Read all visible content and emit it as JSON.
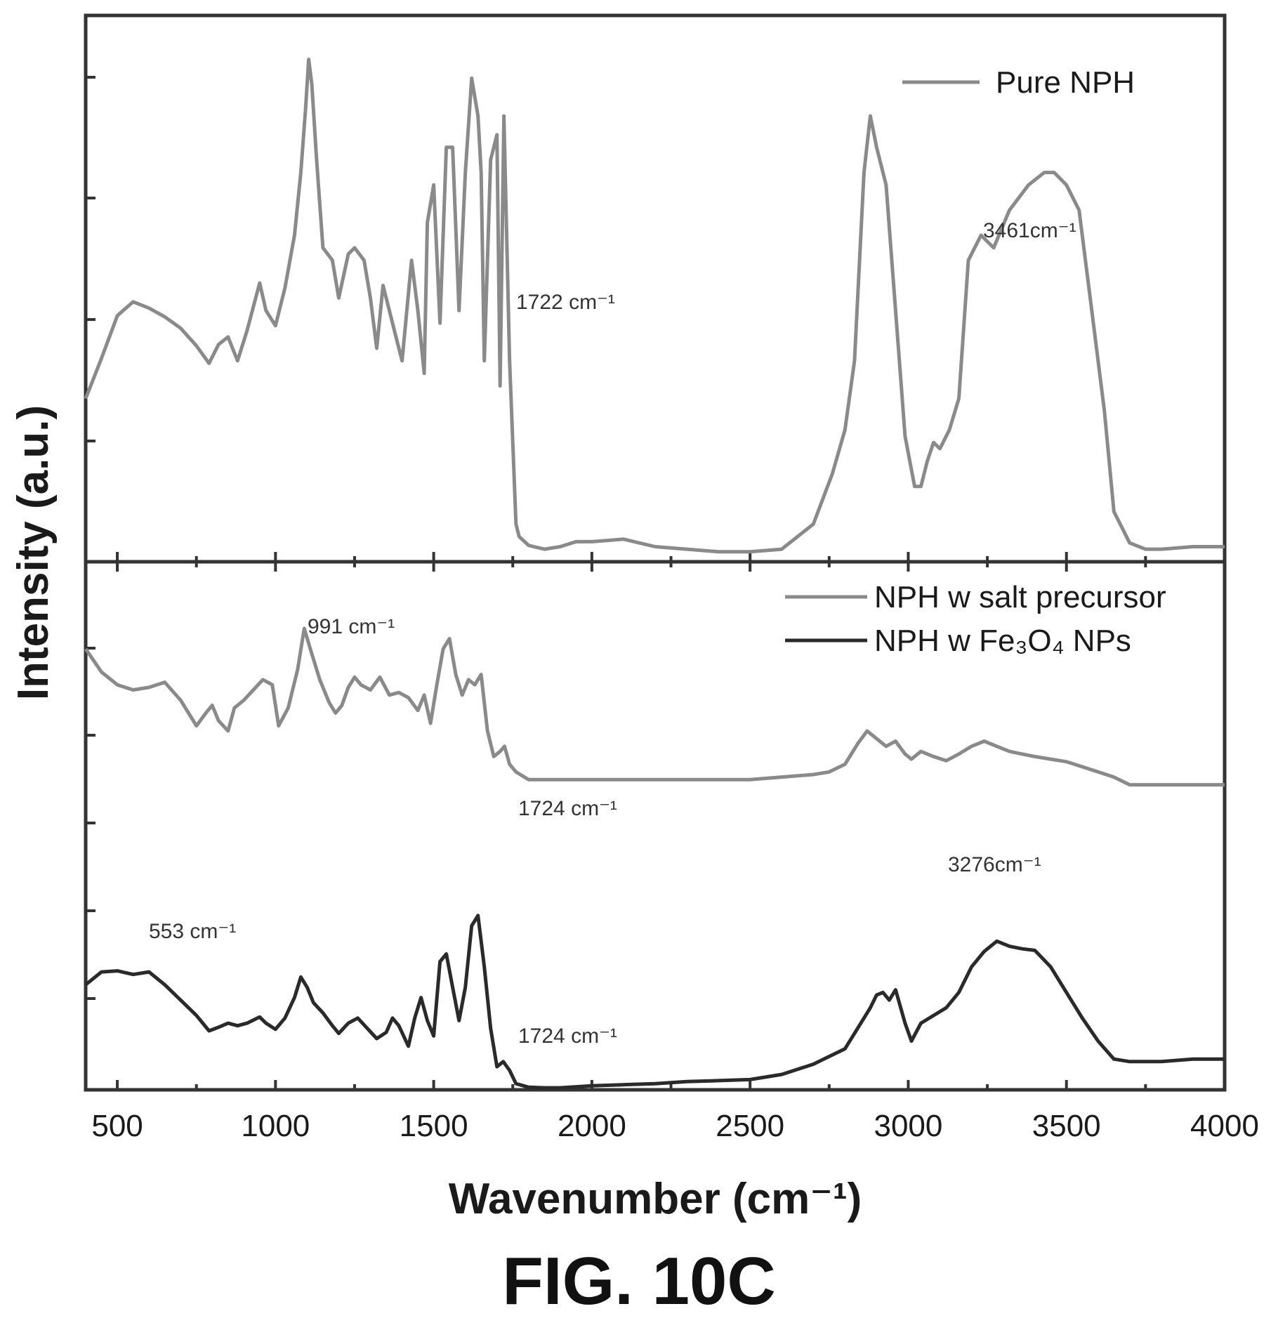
{
  "chart_data": {
    "type": "line",
    "xlabel": "Wavenumber (cm⁻¹)",
    "ylabel": "Intensity (a.u.)",
    "xlim": [
      400,
      4000
    ],
    "x_ticks": [
      "500",
      "1000",
      "1500",
      "2000",
      "2500",
      "3000",
      "3500",
      "4000"
    ],
    "y_tick_labels_shown": false,
    "grid": false,
    "caption": "FIG. 10C",
    "panels": [
      {
        "position": "top",
        "legend_location": "top-right",
        "series": [
          {
            "name": "Pure NPH",
            "color": "#8a8a8a",
            "x": [
              400,
              450,
              500,
              550,
              600,
              650,
              700,
              750,
              790,
              820,
              850,
              880,
              910,
              950,
              970,
              1000,
              1030,
              1060,
              1080,
              1095,
              1105,
              1115,
              1130,
              1150,
              1180,
              1200,
              1230,
              1250,
              1280,
              1300,
              1320,
              1340,
              1360,
              1380,
              1400,
              1430,
              1450,
              1470,
              1480,
              1500,
              1520,
              1540,
              1560,
              1580,
              1600,
              1620,
              1640,
              1650,
              1660,
              1680,
              1700,
              1710,
              1722,
              1740,
              1760,
              1770,
              1800,
              1850,
              1900,
              1950,
              2000,
              2050,
              2100,
              2150,
              2200,
              2300,
              2400,
              2500,
              2600,
              2700,
              2760,
              2800,
              2830,
              2860,
              2880,
              2900,
              2930,
              2960,
              2990,
              3020,
              3040,
              3060,
              3080,
              3100,
              3130,
              3160,
              3190,
              3230,
              3270,
              3320,
              3380,
              3430,
              3461,
              3500,
              3540,
              3580,
              3620,
              3650,
              3700,
              3750,
              3800,
              3900,
              4000
            ],
            "y": [
              1.3,
              1.62,
              1.96,
              2.07,
              2.02,
              1.95,
              1.86,
              1.72,
              1.58,
              1.73,
              1.79,
              1.6,
              1.84,
              2.22,
              2.0,
              1.88,
              2.18,
              2.6,
              3.1,
              3.6,
              4.0,
              3.8,
              3.2,
              2.5,
              2.4,
              2.1,
              2.45,
              2.5,
              2.4,
              2.1,
              1.7,
              2.2,
              2.0,
              1.8,
              1.6,
              2.4,
              2.0,
              1.5,
              2.7,
              3.0,
              1.9,
              3.3,
              3.3,
              2.0,
              3.1,
              3.85,
              3.55,
              3.1,
              1.6,
              3.2,
              3.4,
              1.4,
              3.55,
              1.6,
              0.3,
              0.2,
              0.13,
              0.1,
              0.12,
              0.16,
              0.16,
              0.17,
              0.18,
              0.15,
              0.12,
              0.1,
              0.08,
              0.08,
              0.1,
              0.3,
              0.7,
              1.05,
              1.6,
              3.1,
              3.55,
              3.3,
              3.0,
              2.0,
              1.0,
              0.6,
              0.6,
              0.8,
              0.95,
              0.9,
              1.05,
              1.3,
              2.4,
              2.6,
              2.5,
              2.8,
              3.0,
              3.1,
              3.1,
              3.0,
              2.8,
              2.0,
              1.2,
              0.4,
              0.15,
              0.1,
              0.1,
              0.12,
              0.12
            ]
          }
        ],
        "annotations": [
          "1722 cm⁻¹",
          "3461cm⁻¹"
        ]
      },
      {
        "position": "bottom",
        "legend_location": "top-right",
        "series": [
          {
            "name": "NPH w salt precursor",
            "color": "#8a8a8a",
            "x": [
              400,
              450,
              500,
              550,
              600,
              650,
              700,
              750,
              780,
              800,
              820,
              850,
              870,
              900,
              930,
              960,
              990,
              1010,
              1040,
              1070,
              1091,
              1110,
              1140,
              1170,
              1190,
              1210,
              1230,
              1250,
              1270,
              1300,
              1330,
              1360,
              1390,
              1420,
              1450,
              1470,
              1490,
              1510,
              1530,
              1550,
              1570,
              1590,
              1610,
              1630,
              1650,
              1670,
              1690,
              1710,
              1724,
              1740,
              1760,
              1800,
              1850,
              1900,
              2000,
              2100,
              2200,
              2300,
              2400,
              2500,
              2600,
              2700,
              2750,
              2800,
              2840,
              2870,
              2900,
              2930,
              2960,
              2990,
              3010,
              3040,
              3080,
              3120,
              3160,
              3200,
              3240,
              3280,
              3320,
              3360,
              3400,
              3450,
              3500,
              3550,
              3600,
              3650,
              3700,
              3800,
              3900,
              4000
            ],
            "y": [
              8.6,
              8.15,
              7.9,
              7.8,
              7.85,
              7.95,
              7.6,
              7.1,
              7.35,
              7.5,
              7.2,
              7.0,
              7.45,
              7.6,
              7.8,
              8.0,
              7.9,
              7.1,
              7.45,
              8.2,
              9.0,
              8.6,
              8.0,
              7.55,
              7.35,
              7.5,
              7.85,
              8.05,
              7.9,
              7.8,
              8.05,
              7.7,
              7.75,
              7.65,
              7.4,
              7.7,
              7.15,
              7.9,
              8.6,
              8.8,
              8.1,
              7.7,
              8.0,
              7.9,
              8.1,
              7.0,
              6.5,
              6.6,
              6.7,
              6.35,
              6.2,
              6.05,
              6.05,
              6.05,
              6.05,
              6.05,
              6.05,
              6.05,
              6.05,
              6.05,
              6.1,
              6.15,
              6.2,
              6.35,
              6.75,
              7.0,
              6.85,
              6.7,
              6.8,
              6.55,
              6.45,
              6.6,
              6.5,
              6.42,
              6.55,
              6.7,
              6.8,
              6.7,
              6.6,
              6.55,
              6.5,
              6.45,
              6.4,
              6.3,
              6.2,
              6.1,
              5.95,
              5.95,
              5.95,
              5.95
            ]
          },
          {
            "name": "NPH w Fe₃O₄ NPs",
            "color": "#2a2a2a",
            "x": [
              400,
              450,
              500,
              550,
              600,
              650,
              700,
              750,
              790,
              820,
              850,
              880,
              910,
              950,
              970,
              1000,
              1030,
              1060,
              1080,
              1100,
              1120,
              1150,
              1180,
              1200,
              1230,
              1260,
              1290,
              1320,
              1350,
              1370,
              1390,
              1420,
              1440,
              1460,
              1480,
              1500,
              1520,
              1540,
              1560,
              1580,
              1600,
              1620,
              1640,
              1660,
              1680,
              1700,
              1720,
              1740,
              1760,
              1800,
              1850,
              1900,
              2000,
              2100,
              2200,
              2300,
              2400,
              2500,
              2600,
              2700,
              2750,
              2800,
              2830,
              2860,
              2880,
              2900,
              2920,
              2940,
              2960,
              2990,
              3010,
              3040,
              3080,
              3120,
              3160,
              3200,
              3240,
              3280,
              3320,
              3360,
              3400,
              3450,
              3500,
              3550,
              3600,
              3650,
              3700,
              3800,
              3900,
              4000
            ],
            "y": [
              2.05,
              2.3,
              2.32,
              2.25,
              2.3,
              2.05,
              1.75,
              1.45,
              1.15,
              1.22,
              1.3,
              1.25,
              1.3,
              1.42,
              1.3,
              1.18,
              1.4,
              1.8,
              2.2,
              2.0,
              1.7,
              1.5,
              1.25,
              1.1,
              1.3,
              1.4,
              1.2,
              1.0,
              1.12,
              1.4,
              1.25,
              0.85,
              1.4,
              1.8,
              1.35,
              1.05,
              2.5,
              2.65,
              2.0,
              1.35,
              2.0,
              3.2,
              3.4,
              2.4,
              1.2,
              0.45,
              0.55,
              0.38,
              0.12,
              0.05,
              0.04,
              0.04,
              0.08,
              0.1,
              0.12,
              0.16,
              0.18,
              0.2,
              0.3,
              0.5,
              0.65,
              0.8,
              1.1,
              1.4,
              1.6,
              1.85,
              1.9,
              1.75,
              1.95,
              1.3,
              0.95,
              1.3,
              1.45,
              1.6,
              1.9,
              2.4,
              2.7,
              2.9,
              2.8,
              2.75,
              2.72,
              2.4,
              1.9,
              1.4,
              0.95,
              0.6,
              0.55,
              0.55,
              0.6,
              0.6
            ]
          }
        ],
        "annotations": [
          "991 cm⁻¹",
          "1724 cm⁻¹",
          "1724 cm⁻¹",
          "3276cm⁻¹",
          "553 cm⁻¹"
        ]
      }
    ]
  }
}
